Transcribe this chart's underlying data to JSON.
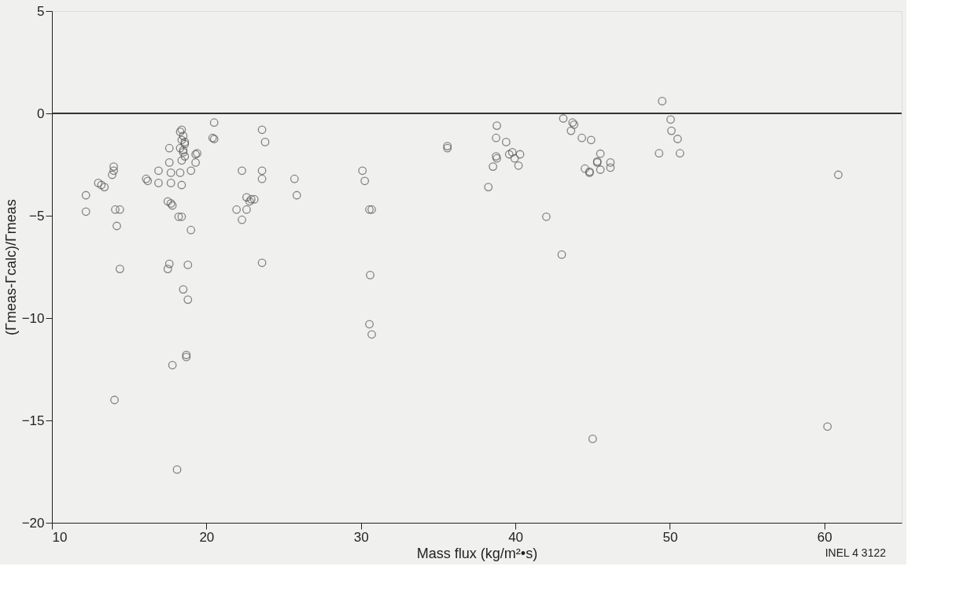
{
  "chart_data": {
    "type": "scatter",
    "xlabel": "Mass flux (kg/m²•s)",
    "ylabel": "(Γmeas-Γcalc)/Γmeas",
    "xlim": [
      10,
      65
    ],
    "ylim": [
      -20,
      5
    ],
    "xticks": [
      10,
      20,
      30,
      40,
      50,
      60
    ],
    "yticks": [
      -20,
      -15,
      -10,
      -5,
      0,
      5
    ],
    "grid": false,
    "marker": "circle",
    "ref_lines": [
      {
        "axis": "y",
        "value": 0,
        "color": "#333333"
      }
    ],
    "annotations": [
      "INEL 4 3122"
    ],
    "series": [
      {
        "color": "#555555",
        "x": [
          12.2,
          12.2,
          13.0,
          13.2,
          13.4,
          13.9,
          14.0,
          14.0,
          14.1,
          14.4,
          14.2,
          14.4,
          14.05,
          16.1,
          16.2,
          16.9,
          16.9,
          17.6,
          17.6,
          17.7,
          17.7,
          18.3,
          18.4,
          19.0,
          19.3,
          19.4,
          19.3,
          18.3,
          18.4,
          18.5,
          18.4,
          18.6,
          18.3,
          18.5,
          18.6,
          18.4,
          18.6,
          18.5,
          17.5,
          17.7,
          17.8,
          18.2,
          18.4,
          19.0,
          17.6,
          17.5,
          18.8,
          18.5,
          18.8,
          18.7,
          18.7,
          17.8,
          18.1,
          20.5,
          20.4,
          20.5,
          23.6,
          23.8,
          22.3,
          23.6,
          23.6,
          22.6,
          22.9,
          23.1,
          22.8,
          21.95,
          22.3,
          22.6,
          23.6,
          25.7,
          25.85,
          30.1,
          30.25,
          30.55,
          30.7,
          30.6,
          30.55,
          30.7,
          35.6,
          35.6,
          38.8,
          38.75,
          39.4,
          38.75,
          38.8,
          38.55,
          38.25,
          39.6,
          39.8,
          40.3,
          39.95,
          40.2,
          42.0,
          43.0,
          43.1,
          43.7,
          43.8,
          43.6,
          44.3,
          44.9,
          44.5,
          44.8,
          45.3,
          45.5,
          45.3,
          46.15,
          46.15,
          44.8,
          45.5,
          45.0,
          60.2,
          49.5,
          50.05,
          50.1,
          50.5,
          49.3,
          50.65,
          60.9
        ],
        "values": [
          -4.0,
          -4.8,
          -3.4,
          -3.5,
          -3.6,
          -3.0,
          -2.8,
          -2.6,
          -4.7,
          -4.7,
          -5.5,
          -7.6,
          -14.0,
          -3.2,
          -3.3,
          -2.8,
          -3.4,
          -1.7,
          -2.4,
          -2.9,
          -3.4,
          -2.9,
          -3.5,
          -2.8,
          -2.0,
          -1.95,
          -2.4,
          -0.9,
          -0.8,
          -1.1,
          -1.3,
          -1.5,
          -1.7,
          -1.9,
          -2.1,
          -2.3,
          -1.4,
          -1.8,
          -4.3,
          -4.4,
          -4.5,
          -5.05,
          -5.05,
          -5.7,
          -7.35,
          -7.6,
          -7.4,
          -8.6,
          -9.1,
          -11.8,
          -11.9,
          -12.3,
          -17.4,
          -0.45,
          -1.2,
          -1.25,
          -0.8,
          -1.4,
          -2.8,
          -2.8,
          -3.2,
          -4.1,
          -4.2,
          -4.2,
          -4.3,
          -4.7,
          -5.2,
          -4.7,
          -7.3,
          -3.2,
          -4.0,
          -2.8,
          -3.3,
          -4.7,
          -4.7,
          -7.9,
          -10.3,
          -10.8,
          -1.6,
          -1.7,
          -0.6,
          -1.2,
          -1.4,
          -2.1,
          -2.2,
          -2.6,
          -3.6,
          -2.0,
          -1.9,
          -2.0,
          -2.2,
          -2.55,
          -5.05,
          -6.9,
          -0.25,
          -0.45,
          -0.55,
          -0.85,
          -1.2,
          -1.3,
          -2.7,
          -2.9,
          -2.4,
          -1.97,
          -2.35,
          -2.4,
          -2.65,
          -2.85,
          -2.75,
          -15.9,
          -15.3,
          0.6,
          -0.3,
          -0.85,
          -1.25,
          -1.95,
          -1.95,
          -3.0
        ]
      }
    ]
  }
}
